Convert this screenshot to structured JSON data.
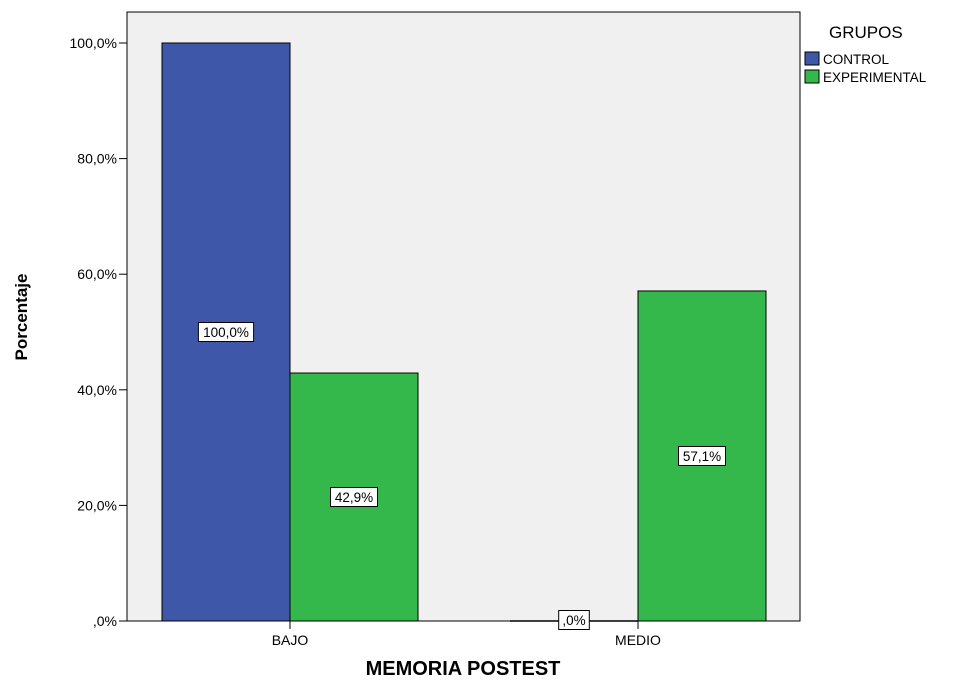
{
  "chart_data": {
    "type": "bar",
    "xlabel": "MEMORIA POSTEST",
    "ylabel": "Porcentaje",
    "categories": [
      "BAJO",
      "MEDIO"
    ],
    "series": [
      {
        "name": "CONTROL",
        "color": "#3f57a9",
        "values": [
          100.0,
          0.0
        ],
        "labels": [
          "100,0%",
          ",0%"
        ]
      },
      {
        "name": "EXPERIMENTAL",
        "color": "#34b84b",
        "values": [
          42.9,
          57.1
        ],
        "labels": [
          "42,9%",
          "57,1%"
        ]
      }
    ],
    "ylim": [
      0,
      100
    ],
    "yticks": [
      {
        "value": 0,
        "label": ",0%"
      },
      {
        "value": 20,
        "label": "20,0%"
      },
      {
        "value": 40,
        "label": "40,0%"
      },
      {
        "value": 60,
        "label": "60,0%"
      },
      {
        "value": 80,
        "label": "80,0%"
      },
      {
        "value": 100,
        "label": "100,0%"
      }
    ],
    "legend": {
      "title": "GRUPOS",
      "placement": "top-right"
    },
    "grid": false,
    "plot_background": "#f0f0f0"
  }
}
